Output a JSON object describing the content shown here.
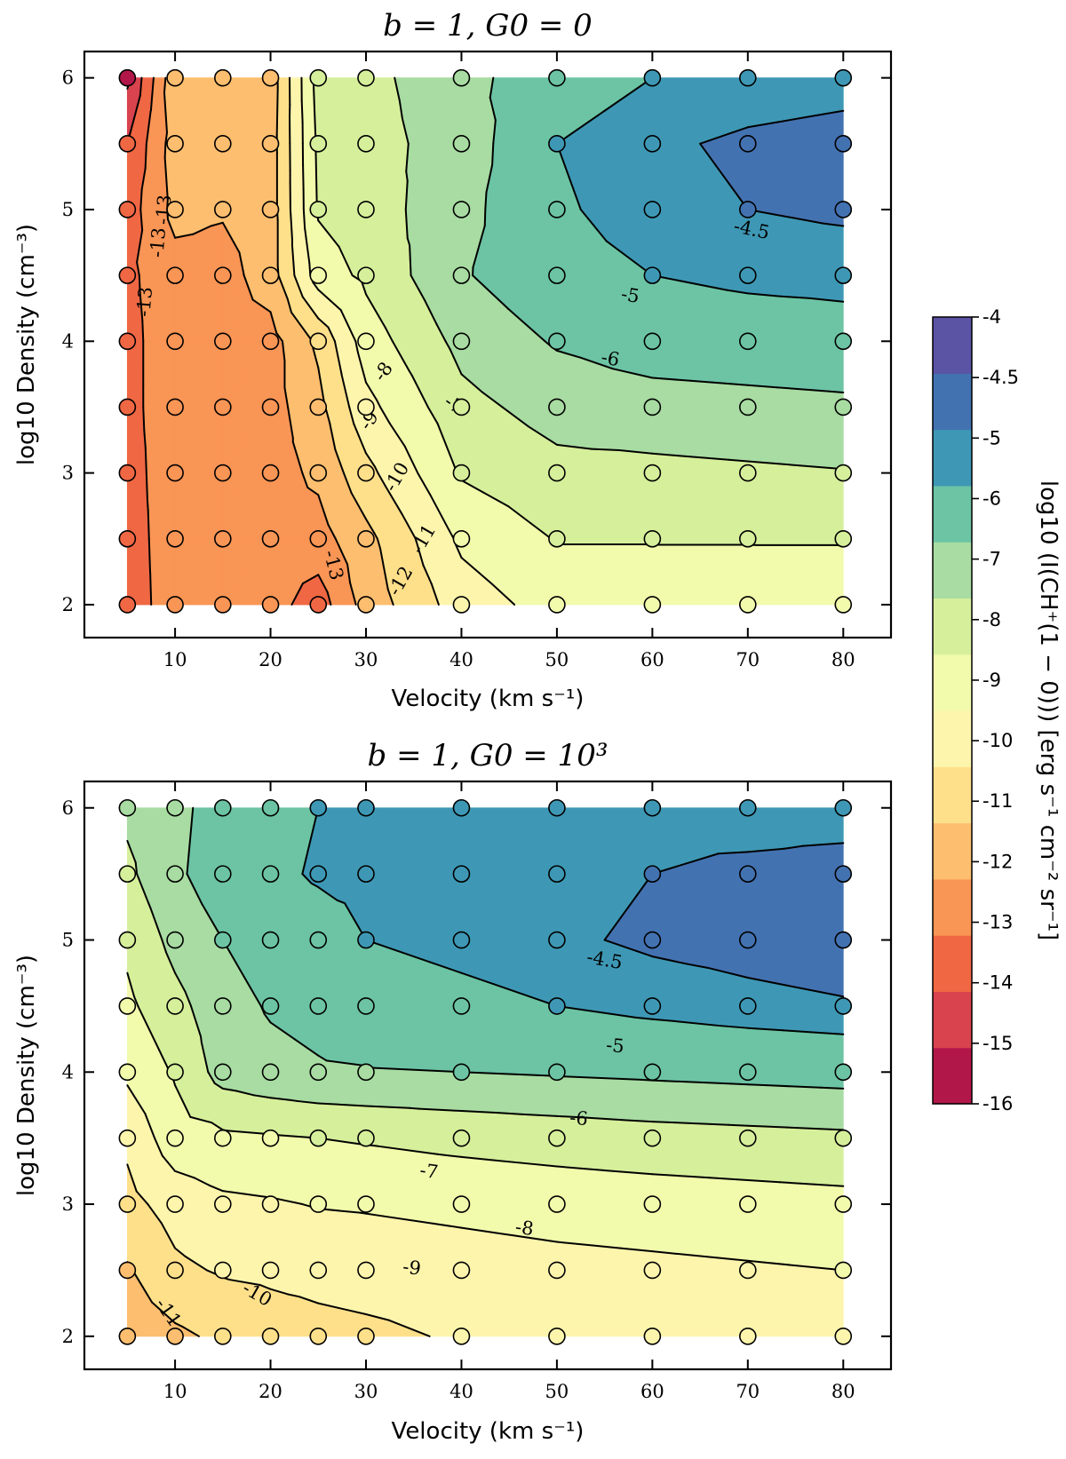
{
  "chart_data": [
    {
      "type": "contour",
      "title": "b = 1,  G0 = 0",
      "xlabel": "Velocity (km s⁻¹)",
      "ylabel": "log10 Density (cm⁻³)",
      "x": [
        5,
        10,
        15,
        20,
        25,
        30,
        40,
        50,
        60,
        70,
        80
      ],
      "y": [
        2,
        2.5,
        3,
        3.5,
        4,
        4.5,
        5,
        5.5,
        6
      ],
      "xticks": [
        "10",
        "20",
        "30",
        "40",
        "50",
        "60",
        "70",
        "80"
      ],
      "yticks": [
        "2",
        "3",
        "4",
        "5",
        "6"
      ],
      "xlim": [
        0.5,
        85
      ],
      "ylim": [
        1.75,
        6.2
      ],
      "z": [
        [
          -13.6,
          -12.4,
          -12.5,
          -12.6,
          -13.5,
          -11.6,
          -9.5,
          -8.6,
          -8.5,
          -8.5,
          -8.45
        ],
        [
          -13.5,
          -12.4,
          -12.4,
          -12.4,
          -12.4,
          -11.3,
          -8.8,
          -7.95,
          -7.95,
          -7.95,
          -7.95
        ],
        [
          -13.4,
          -12.4,
          -12.4,
          -12.4,
          -11.8,
          -10.3,
          -7.9,
          -7.3,
          -7.25,
          -7.15,
          -7.05
        ],
        [
          -13.3,
          -12.4,
          -12.4,
          -12.4,
          -11.3,
          -9.3,
          -7.3,
          -6.6,
          -6.4,
          -6.3,
          -6.2
        ],
        [
          -13.3,
          -12.4,
          -12.4,
          -12.4,
          -10.8,
          -8.5,
          -6.7,
          -5.9,
          -5.5,
          -5.4,
          -5.3
        ],
        [
          -13.2,
          -12.4,
          -12.4,
          -11.5,
          -8.5,
          -7.8,
          -6.1,
          -5.25,
          -5.0,
          -4.85,
          -4.8
        ],
        [
          -13.5,
          -11.7,
          -11.9,
          -11.5,
          -7.9,
          -7.5,
          -6.3,
          -5.1,
          -4.7,
          -4.5,
          -4.4
        ],
        [
          -14,
          -11.5,
          -11.5,
          -11.5,
          -7.8,
          -7.4,
          -6.5,
          -5.0,
          -4.6,
          -4.4,
          -4.3
        ],
        [
          -15.2,
          -11.2,
          -11.6,
          -11.6,
          -7.6,
          -7.3,
          -6.3,
          -5.4,
          -5.0,
          -4.8,
          -4.7
        ]
      ],
      "contour_labels": [
        "-13",
        "-13",
        "-13",
        "-13",
        "-12",
        "-11",
        "-10",
        "-9",
        "-8",
        "-7",
        "-6",
        "-5",
        "-4.5"
      ]
    },
    {
      "type": "contour",
      "title": "b = 1,  G0 = 10³",
      "xlabel": "Velocity (km s⁻¹)",
      "ylabel": "log10 Density (cm⁻³)",
      "x": [
        5,
        10,
        15,
        20,
        25,
        30,
        40,
        50,
        60,
        70,
        80
      ],
      "y": [
        2,
        2.5,
        3,
        3.5,
        4,
        4.5,
        5,
        5.5,
        6
      ],
      "xticks": [
        "10",
        "20",
        "30",
        "40",
        "50",
        "60",
        "70",
        "80"
      ],
      "yticks": [
        "2",
        "3",
        "4",
        "5",
        "6"
      ],
      "xlim": [
        0.5,
        85
      ],
      "ylim": [
        1.75,
        6.2
      ],
      "z": [
        [
          -11.6,
          -11.2,
          -10.8,
          -10.5,
          -10.3,
          -10.2,
          -9.9,
          -9.8,
          -9.7,
          -9.6,
          -9.5
        ],
        [
          -11.1,
          -10.2,
          -9.9,
          -9.8,
          -9.7,
          -9.6,
          -9.45,
          -9.3,
          -9.2,
          -9.1,
          -9.0
        ],
        [
          -10.3,
          -9.6,
          -9.2,
          -9.1,
          -8.95,
          -8.9,
          -8.75,
          -8.6,
          -8.5,
          -8.4,
          -8.3
        ],
        [
          -9.8,
          -8.4,
          -8.2,
          -8.1,
          -8.0,
          -7.9,
          -7.7,
          -7.55,
          -7.4,
          -7.3,
          -7.2
        ],
        [
          -8.8,
          -7.9,
          -6.6,
          -6.3,
          -6.1,
          -6.05,
          -6.0,
          -5.9,
          -5.8,
          -5.7,
          -5.6
        ],
        [
          -8.2,
          -7.3,
          -6.4,
          -5.9,
          -5.7,
          -5.4,
          -5.2,
          -5.0,
          -4.8,
          -4.65,
          -4.55
        ],
        [
          -7.8,
          -6.7,
          -6.0,
          -5.5,
          -5.4,
          -5.0,
          -4.8,
          -4.6,
          -4.4,
          -4.3,
          -4.2
        ],
        [
          -7.2,
          -6.2,
          -5.4,
          -5.2,
          -4.9,
          -4.8,
          -4.75,
          -4.7,
          -4.5,
          -4.3,
          -4.15
        ],
        [
          -6.8,
          -6.3,
          -5.5,
          -5.3,
          -5.0,
          -4.9,
          -4.7,
          -4.7,
          -4.8,
          -4.9,
          -4.9
        ]
      ],
      "contour_labels": [
        "-11",
        "-10",
        "-9",
        "-8",
        "-7",
        "-6",
        "-5",
        "-4.5"
      ]
    }
  ],
  "colorbar": {
    "label": "log10 (I(CH⁺(1 − 0))) [erg s⁻¹ cm⁻² sr⁻¹]",
    "levels": [
      -16,
      -15,
      -14,
      -13,
      -12,
      -11,
      -10,
      -9,
      -8,
      -7,
      -6,
      -5,
      -4.5,
      -4
    ],
    "tick_labels": [
      "-16",
      "-15",
      "-14",
      "-13",
      "-12",
      "-11",
      "-10",
      "-9",
      "-8",
      "-7",
      "-6",
      "-5",
      "-4.5",
      "-4"
    ],
    "colors": [
      "#b2174a",
      "#d8434e",
      "#f06744",
      "#f99555",
      "#fdbe6f",
      "#fee08b",
      "#fef5ad",
      "#f2faac",
      "#d6ef9b",
      "#a8dca2",
      "#6cc4a4",
      "#3e98b5",
      "#4372b1",
      "#5b53a4"
    ]
  }
}
